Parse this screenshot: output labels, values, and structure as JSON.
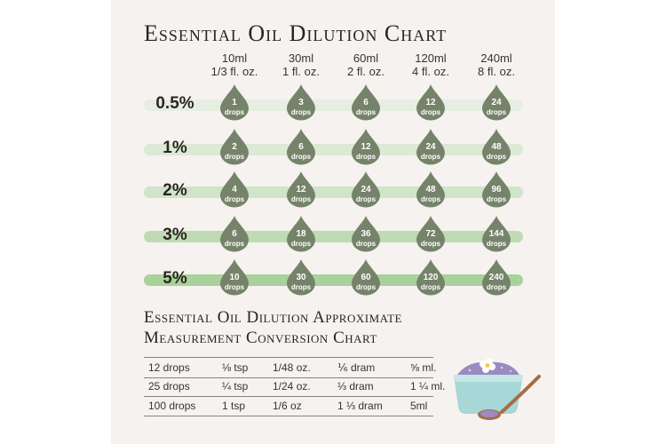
{
  "title": "Essential Oil Dilution Chart",
  "volumes": [
    {
      "ml": "10ml",
      "oz": "1/3 fl. oz."
    },
    {
      "ml": "30ml",
      "oz": "1 fl. oz."
    },
    {
      "ml": "60ml",
      "oz": "2 fl. oz."
    },
    {
      "ml": "120ml",
      "oz": "4 fl. oz."
    },
    {
      "ml": "240ml",
      "oz": "8 fl. oz."
    }
  ],
  "drop_unit": "drops",
  "dilutions": [
    {
      "percent": "0.5%",
      "drops": [
        "1",
        "3",
        "6",
        "12",
        "24"
      ],
      "band_color": "#e6eee2"
    },
    {
      "percent": "1%",
      "drops": [
        "2",
        "6",
        "12",
        "24",
        "48"
      ],
      "band_color": "#dbe9d5"
    },
    {
      "percent": "2%",
      "drops": [
        "4",
        "12",
        "24",
        "48",
        "96"
      ],
      "band_color": "#d0e4c9"
    },
    {
      "percent": "3%",
      "drops": [
        "6",
        "18",
        "36",
        "72",
        "144"
      ],
      "band_color": "#bedbb4"
    },
    {
      "percent": "5%",
      "drops": [
        "10",
        "30",
        "60",
        "120",
        "240"
      ],
      "band_color": "#a9d19b"
    }
  ],
  "colors": {
    "drop": "#75836a",
    "text": "#2b2521"
  },
  "conversion": {
    "title_line1": "Essential Oil Dilution Approximate",
    "title_line2": "Measurement Conversion Chart",
    "rows": [
      [
        "12 drops",
        "⅛ tsp",
        "1/48 oz.",
        "⅙ dram",
        "⅝ ml."
      ],
      [
        "25 drops",
        "¼ tsp",
        "1/24 oz.",
        "⅓ dram",
        "1 ¼ ml."
      ],
      [
        "100 drops",
        "1 tsp",
        "1/6 oz",
        "1 ⅓ dram",
        "5ml"
      ]
    ]
  },
  "illustration": "lavender-salt-bowl-with-wooden-spoon"
}
